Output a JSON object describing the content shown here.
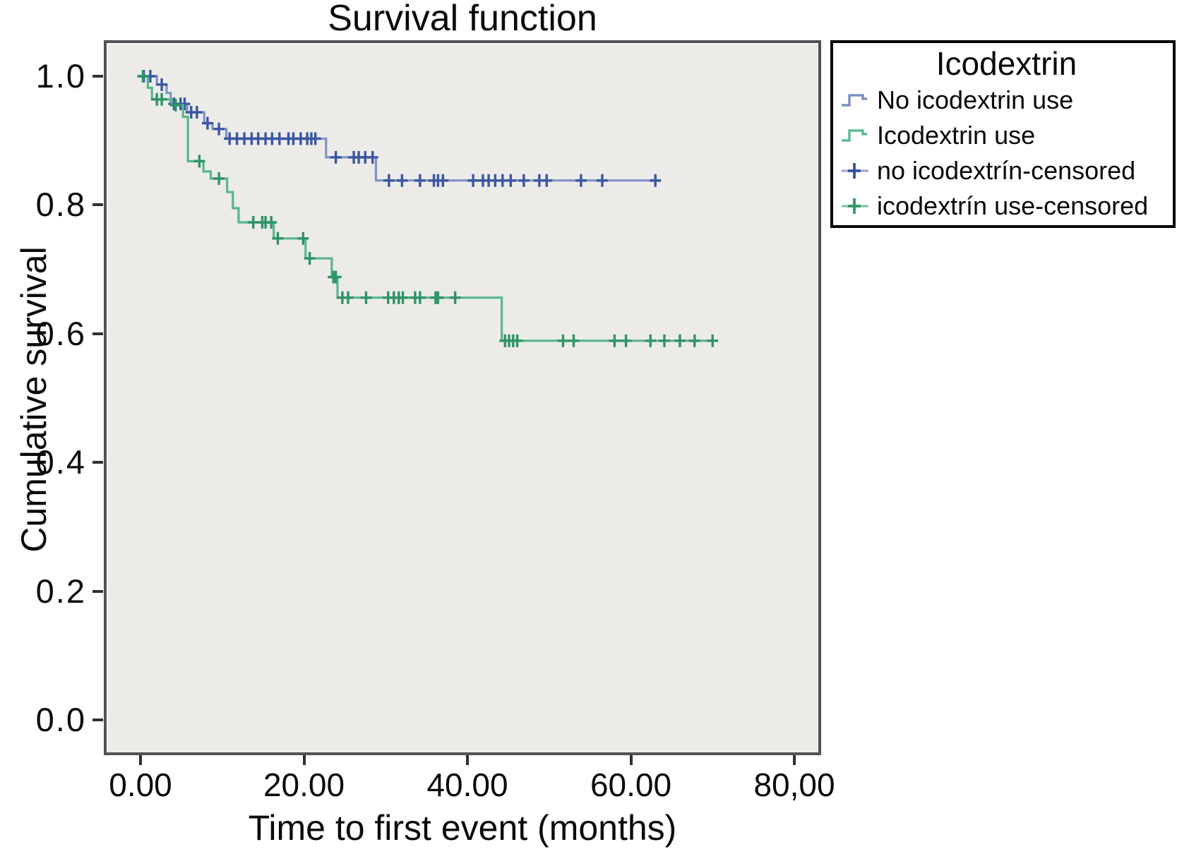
{
  "chart_data": {
    "type": "line",
    "subtype": "kaplan-meier-step",
    "title": "Survival function",
    "xlabel": "Time to first event (months)",
    "ylabel": "Cumulative survival",
    "grid": false,
    "plot_background": "#ecebe8",
    "xticks": [
      {
        "label": "0.00",
        "value": 0
      },
      {
        "label": "20.00",
        "value": 20
      },
      {
        "label": "40.00",
        "value": 40
      },
      {
        "label": "60.00",
        "value": 60
      },
      {
        "label": "80,00",
        "value": 80
      }
    ],
    "yticks": [
      {
        "label": "1.0",
        "value": 1.0
      },
      {
        "label": "0.8",
        "value": 0.8
      },
      {
        "label": "0.6",
        "value": 0.6
      },
      {
        "label": "0.4",
        "value": 0.4
      },
      {
        "label": "0.2",
        "value": 0.2
      },
      {
        "label": "0.0",
        "value": 0.0
      }
    ],
    "xlim": [
      -4.5,
      83.5
    ],
    "ylim": [
      -0.055,
      1.055
    ],
    "legend": {
      "title": "Icodextrin",
      "position": "outside-top-right",
      "entries": [
        {
          "label": "No icodextrin use",
          "type": "step-line",
          "color": "#7e90c2",
          "accent": "#7e90c2"
        },
        {
          "label": "Icodextrin use",
          "type": "step-line",
          "color": "#5eba8e",
          "accent": "#5eba8e"
        },
        {
          "label": "no icodextrín-censored",
          "type": "plus-marker",
          "color": "#9aa8cf",
          "accent": "#35539f"
        },
        {
          "label": "icodextrín use-censored",
          "type": "plus-marker",
          "color": "#7cc7a4",
          "accent": "#2f9668"
        }
      ]
    },
    "series": [
      {
        "name": "No icodextrin use",
        "color": "#8193c5",
        "censor_color": "#3a57a2",
        "end_time": 63.3,
        "steps": [
          [
            0,
            1.0
          ],
          [
            2.0,
            0.987
          ],
          [
            3.2,
            0.974
          ],
          [
            3.7,
            0.957
          ],
          [
            5.7,
            0.944
          ],
          [
            7.8,
            0.927
          ],
          [
            8.8,
            0.918
          ],
          [
            10.5,
            0.903
          ],
          [
            22.7,
            0.874
          ],
          [
            28.8,
            0.838
          ]
        ],
        "censors": [
          [
            0.4,
            1.0
          ],
          [
            1.2,
            1.0
          ],
          [
            2.6,
            0.987
          ],
          [
            4.1,
            0.957
          ],
          [
            4.9,
            0.957
          ],
          [
            5.4,
            0.957
          ],
          [
            6.2,
            0.944
          ],
          [
            6.9,
            0.944
          ],
          [
            8.2,
            0.927
          ],
          [
            9.6,
            0.918
          ],
          [
            10.9,
            0.903
          ],
          [
            11.8,
            0.903
          ],
          [
            12.7,
            0.903
          ],
          [
            13.6,
            0.903
          ],
          [
            14.4,
            0.903
          ],
          [
            15.3,
            0.903
          ],
          [
            16.1,
            0.903
          ],
          [
            17.0,
            0.903
          ],
          [
            18.1,
            0.903
          ],
          [
            18.7,
            0.903
          ],
          [
            19.6,
            0.903
          ],
          [
            20.4,
            0.903
          ],
          [
            20.9,
            0.903
          ],
          [
            21.4,
            0.903
          ],
          [
            23.9,
            0.874
          ],
          [
            26.1,
            0.874
          ],
          [
            26.7,
            0.874
          ],
          [
            27.5,
            0.874
          ],
          [
            28.4,
            0.874
          ],
          [
            30.4,
            0.838
          ],
          [
            32.0,
            0.838
          ],
          [
            34.2,
            0.838
          ],
          [
            35.9,
            0.838
          ],
          [
            36.4,
            0.838
          ],
          [
            37.0,
            0.838
          ],
          [
            40.7,
            0.838
          ],
          [
            41.9,
            0.838
          ],
          [
            42.6,
            0.838
          ],
          [
            43.4,
            0.838
          ],
          [
            44.3,
            0.838
          ],
          [
            45.3,
            0.838
          ],
          [
            46.9,
            0.838
          ],
          [
            48.8,
            0.838
          ],
          [
            49.7,
            0.838
          ],
          [
            53.9,
            0.838
          ],
          [
            56.5,
            0.838
          ],
          [
            63.0,
            0.838
          ]
        ]
      },
      {
        "name": "Icodextrin use",
        "color": "#58b78b",
        "censor_color": "#2e9465",
        "end_time": 70.5,
        "steps": [
          [
            0,
            1.0
          ],
          [
            0.9,
            0.982
          ],
          [
            1.4,
            0.964
          ],
          [
            3.8,
            0.955
          ],
          [
            5.2,
            0.937
          ],
          [
            5.8,
            0.868
          ],
          [
            7.7,
            0.852
          ],
          [
            8.6,
            0.841
          ],
          [
            10.6,
            0.82
          ],
          [
            11.3,
            0.795
          ],
          [
            12.0,
            0.773
          ],
          [
            16.3,
            0.748
          ],
          [
            20.2,
            0.717
          ],
          [
            23.4,
            0.688
          ],
          [
            24.1,
            0.656
          ],
          [
            44.2,
            0.589
          ]
        ],
        "censors": [
          [
            0.3,
            1.0
          ],
          [
            2.0,
            0.964
          ],
          [
            2.6,
            0.964
          ],
          [
            4.3,
            0.955
          ],
          [
            7.2,
            0.868
          ],
          [
            9.6,
            0.841
          ],
          [
            13.8,
            0.773
          ],
          [
            14.9,
            0.773
          ],
          [
            15.3,
            0.773
          ],
          [
            16.0,
            0.773
          ],
          [
            16.8,
            0.748
          ],
          [
            19.9,
            0.748
          ],
          [
            20.7,
            0.717
          ],
          [
            23.6,
            0.688
          ],
          [
            23.9,
            0.688
          ],
          [
            24.7,
            0.656
          ],
          [
            25.4,
            0.656
          ],
          [
            27.6,
            0.656
          ],
          [
            30.3,
            0.656
          ],
          [
            31.0,
            0.656
          ],
          [
            31.6,
            0.656
          ],
          [
            32.1,
            0.656
          ],
          [
            33.6,
            0.656
          ],
          [
            34.2,
            0.656
          ],
          [
            36.1,
            0.656
          ],
          [
            36.4,
            0.656
          ],
          [
            38.5,
            0.656
          ],
          [
            44.6,
            0.589
          ],
          [
            45.1,
            0.589
          ],
          [
            45.6,
            0.589
          ],
          [
            46.1,
            0.589
          ],
          [
            51.7,
            0.589
          ],
          [
            53.0,
            0.589
          ],
          [
            58.0,
            0.589
          ],
          [
            59.4,
            0.589
          ],
          [
            62.4,
            0.589
          ],
          [
            64.1,
            0.589
          ],
          [
            66.0,
            0.589
          ],
          [
            67.8,
            0.589
          ],
          [
            70.0,
            0.589
          ]
        ]
      }
    ]
  }
}
